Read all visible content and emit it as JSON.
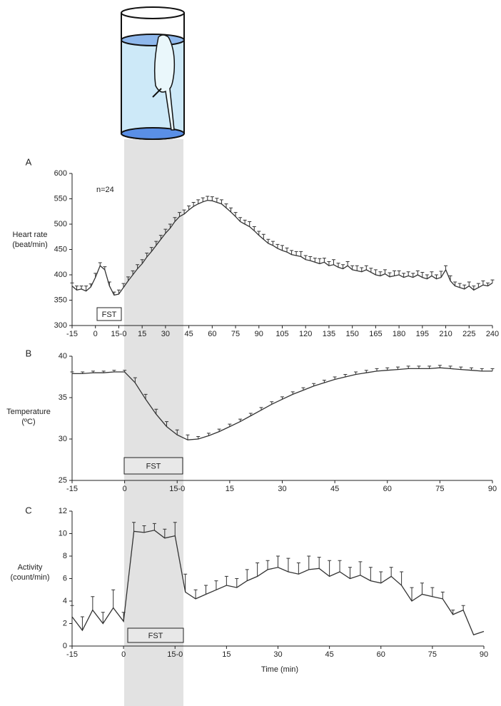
{
  "chart_data": [
    {
      "type": "line",
      "panel": "A",
      "note": "n=24",
      "box_label": "FST",
      "ylabel": [
        "Heart rate",
        "(beat/min)"
      ],
      "color": "#333333",
      "xlim": [
        -15,
        255
      ],
      "ylim": [
        300,
        600
      ],
      "yticks": [
        300,
        350,
        400,
        450,
        500,
        550,
        600
      ],
      "xticks": [
        -15,
        0,
        {
          "value": 15,
          "label": "15-0"
        },
        {
          "value": 30,
          "label": "15"
        },
        {
          "value": 45,
          "label": "30"
        },
        {
          "value": 60,
          "label": "45"
        },
        {
          "value": 75,
          "label": "60"
        },
        {
          "value": 90,
          "label": "75"
        },
        {
          "value": 105,
          "label": "90"
        },
        {
          "value": 120,
          "label": "105"
        },
        {
          "value": 135,
          "label": "120"
        },
        {
          "value": 150,
          "label": "135"
        },
        {
          "value": 165,
          "label": "150"
        },
        {
          "value": 180,
          "label": "165"
        },
        {
          "value": 195,
          "label": "180"
        },
        {
          "value": 210,
          "label": "195"
        },
        {
          "value": 225,
          "label": "210"
        },
        {
          "value": 240,
          "label": "225"
        },
        {
          "value": 255,
          "label": "240"
        }
      ],
      "x": [
        -15,
        -12,
        -9,
        -6,
        -3,
        0,
        3,
        6,
        9,
        12,
        15,
        18,
        21,
        24,
        27,
        30,
        33,
        36,
        39,
        42,
        45,
        48,
        51,
        54,
        57,
        60,
        63,
        66,
        69,
        72,
        75,
        78,
        81,
        84,
        87,
        90,
        93,
        96,
        99,
        102,
        105,
        108,
        111,
        114,
        117,
        120,
        123,
        126,
        129,
        132,
        135,
        138,
        141,
        144,
        147,
        150,
        153,
        156,
        159,
        162,
        165,
        168,
        171,
        174,
        177,
        180,
        183,
        186,
        189,
        192,
        195,
        198,
        201,
        204,
        207,
        210,
        213,
        216,
        219,
        222,
        225,
        228,
        231,
        234,
        237,
        240,
        243,
        246,
        249,
        252,
        255
      ],
      "values": [
        378,
        370,
        372,
        368,
        376,
        395,
        418,
        410,
        378,
        360,
        362,
        375,
        388,
        400,
        412,
        422,
        435,
        446,
        458,
        470,
        482,
        492,
        505,
        515,
        520,
        528,
        535,
        540,
        544,
        547,
        546,
        543,
        540,
        532,
        524,
        515,
        505,
        500,
        495,
        487,
        478,
        470,
        462,
        458,
        452,
        448,
        445,
        440,
        438,
        436,
        430,
        428,
        425,
        422,
        425,
        418,
        420,
        415,
        412,
        418,
        410,
        408,
        406,
        410,
        405,
        400,
        398,
        402,
        396,
        398,
        400,
        395,
        398,
        395,
        400,
        395,
        392,
        398,
        392,
        395,
        410,
        388,
        378,
        375,
        372,
        378,
        370,
        375,
        380,
        378,
        384
      ],
      "errors": [
        6,
        8,
        6,
        10,
        6,
        8,
        6,
        6,
        8,
        6,
        8,
        8,
        8,
        8,
        8,
        8,
        8,
        8,
        8,
        8,
        8,
        8,
        8,
        8,
        8,
        8,
        8,
        8,
        8,
        8,
        8,
        8,
        8,
        8,
        8,
        8,
        8,
        8,
        10,
        8,
        8,
        10,
        8,
        8,
        8,
        10,
        8,
        8,
        8,
        10,
        8,
        8,
        8,
        10,
        8,
        8,
        10,
        8,
        8,
        8,
        8,
        10,
        8,
        8,
        8,
        10,
        8,
        8,
        8,
        10,
        8,
        8,
        8,
        8,
        8,
        10,
        8,
        8,
        8,
        12,
        8,
        10,
        8,
        8,
        8,
        8,
        8,
        8,
        8,
        6,
        6
      ]
    },
    {
      "type": "line",
      "panel": "B",
      "box_label": "FST",
      "ylabel": [
        "Temperature",
        "(ºC)"
      ],
      "color": "#333333",
      "xlim": [
        -15,
        105
      ],
      "ylim": [
        25,
        40
      ],
      "yticks": [
        25,
        30,
        35,
        40
      ],
      "xticks": [
        -15,
        0,
        {
          "value": 15,
          "label": "15-0"
        },
        {
          "value": 30,
          "label": "15"
        },
        {
          "value": 45,
          "label": "30"
        },
        {
          "value": 60,
          "label": "45"
        },
        {
          "value": 75,
          "label": "60"
        },
        {
          "value": 90,
          "label": "75"
        },
        {
          "value": 105,
          "label": "90"
        }
      ],
      "x": [
        -15,
        -12,
        -9,
        -6,
        -3,
        0,
        3,
        6,
        9,
        12,
        15,
        18,
        21,
        24,
        27,
        30,
        33,
        36,
        39,
        42,
        45,
        48,
        51,
        54,
        57,
        60,
        63,
        66,
        69,
        72,
        75,
        78,
        81,
        84,
        87,
        90,
        93,
        96,
        99,
        102,
        105
      ],
      "values": [
        37.9,
        37.9,
        38.0,
        38.0,
        38.1,
        38.1,
        36.8,
        34.8,
        33.0,
        31.5,
        30.5,
        29.9,
        30.0,
        30.4,
        30.9,
        31.5,
        32.1,
        32.8,
        33.5,
        34.2,
        34.8,
        35.4,
        35.9,
        36.4,
        36.8,
        37.2,
        37.5,
        37.8,
        38.0,
        38.2,
        38.3,
        38.4,
        38.5,
        38.5,
        38.5,
        38.6,
        38.5,
        38.4,
        38.3,
        38.2,
        38.2
      ],
      "errors": [
        0.2,
        0.2,
        0.2,
        0.2,
        0.2,
        0.2,
        0.6,
        0.6,
        0.6,
        0.6,
        0.6,
        0.6,
        0.3,
        0.3,
        0.3,
        0.3,
        0.3,
        0.3,
        0.3,
        0.3,
        0.3,
        0.3,
        0.3,
        0.3,
        0.3,
        0.3,
        0.3,
        0.3,
        0.3,
        0.3,
        0.3,
        0.3,
        0.3,
        0.3,
        0.3,
        0.3,
        0.3,
        0.3,
        0.3,
        0.3,
        0.3
      ]
    },
    {
      "type": "line",
      "panel": "C",
      "box_label": "FST",
      "ylabel": [
        "Activity",
        "(count/min)"
      ],
      "xlabel": "Time (min)",
      "color": "#333333",
      "xlim": [
        -15,
        105
      ],
      "ylim": [
        0,
        12
      ],
      "yticks": [
        0,
        2,
        4,
        6,
        8,
        10,
        12
      ],
      "xticks": [
        -15,
        0,
        {
          "value": 15,
          "label": "15-0"
        },
        {
          "value": 30,
          "label": "15"
        },
        {
          "value": 45,
          "label": "30"
        },
        {
          "value": 60,
          "label": "45"
        },
        {
          "value": 75,
          "label": "60"
        },
        {
          "value": 90,
          "label": "75"
        },
        {
          "value": 105,
          "label": "90"
        }
      ],
      "x": [
        -15,
        -12,
        -9,
        -6,
        -3,
        0,
        3,
        6,
        9,
        12,
        15,
        18,
        21,
        24,
        27,
        30,
        33,
        36,
        39,
        42,
        45,
        48,
        51,
        54,
        57,
        60,
        63,
        66,
        69,
        72,
        75,
        78,
        81,
        84,
        87,
        90,
        93,
        96,
        99,
        102,
        105
      ],
      "values": [
        2.6,
        1.4,
        3.2,
        2.0,
        3.4,
        2.2,
        10.2,
        10.1,
        10.3,
        9.6,
        9.8,
        4.8,
        4.2,
        4.6,
        5.0,
        5.4,
        5.2,
        5.8,
        6.2,
        6.8,
        7.0,
        6.6,
        6.4,
        6.8,
        6.9,
        6.2,
        6.6,
        6.0,
        6.3,
        5.8,
        5.6,
        6.2,
        5.4,
        4.0,
        4.6,
        4.4,
        4.2,
        2.8,
        3.2,
        1.0,
        1.3
      ],
      "errors": [
        1.0,
        1.2,
        1.2,
        1.0,
        1.6,
        0.8,
        0.8,
        0.6,
        0.6,
        0.8,
        1.2,
        1.6,
        0.8,
        0.8,
        0.8,
        0.8,
        0.8,
        1.0,
        1.2,
        0.8,
        1.0,
        1.2,
        1.0,
        1.2,
        1.0,
        1.4,
        1.0,
        1.0,
        1.2,
        1.2,
        1.0,
        0.8,
        1.2,
        1.2,
        1.0,
        0.8,
        0.6,
        0.4,
        0.4,
        0,
        0
      ]
    }
  ]
}
